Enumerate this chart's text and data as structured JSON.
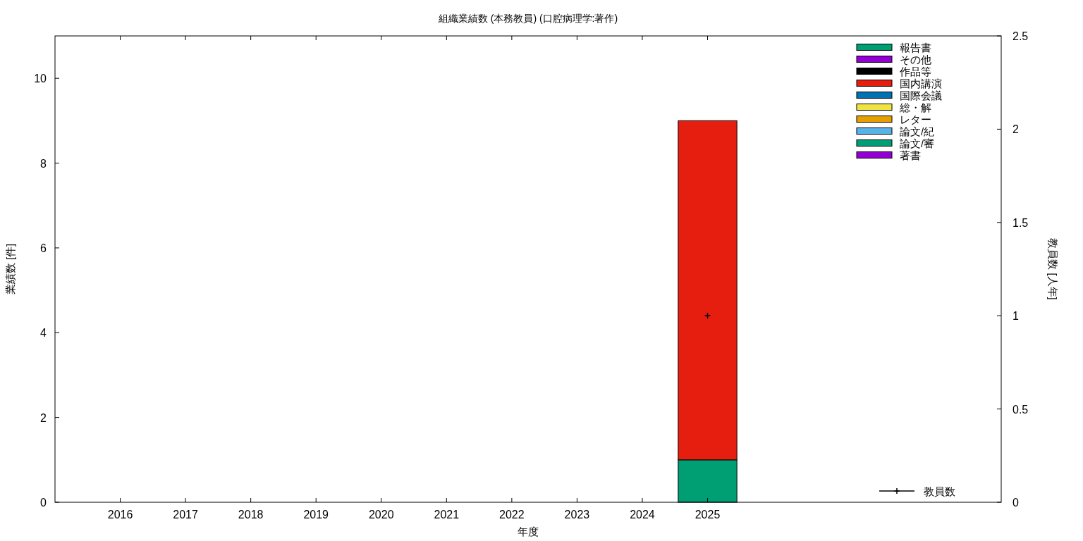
{
  "chart_data": {
    "type": "bar",
    "title": "組織業績数 (本務教員) (口腔病理学:著作)",
    "xlabel": "年度",
    "ylabel": "業績数 [件]",
    "y2label": "教員数 [人年]",
    "x": [
      2025
    ],
    "xlim": [
      2015,
      2029.5
    ],
    "xticks": [
      2016,
      2017,
      2018,
      2019,
      2020,
      2021,
      2022,
      2023,
      2024,
      2025
    ],
    "ylim": [
      0,
      11
    ],
    "yticks": [
      0,
      2,
      4,
      6,
      8,
      10
    ],
    "y2lim": [
      0,
      2.5
    ],
    "y2ticks": [
      0,
      0.5,
      1,
      1.5,
      2,
      2.5
    ],
    "stacked": true,
    "legend": "right",
    "grid": false,
    "series": [
      {
        "name": "著書",
        "color": "#9400d3",
        "values": [
          0
        ]
      },
      {
        "name": "論文/審",
        "color": "#009e73",
        "values": [
          1
        ]
      },
      {
        "name": "論文/紀",
        "color": "#56b4e9",
        "values": [
          0
        ]
      },
      {
        "name": "レター",
        "color": "#e69f00",
        "values": [
          0
        ]
      },
      {
        "name": "総・解",
        "color": "#f0e442",
        "values": [
          0
        ]
      },
      {
        "name": "国際会議",
        "color": "#0072b2",
        "values": [
          0
        ]
      },
      {
        "name": "国内講演",
        "color": "#e51e10",
        "values": [
          8
        ]
      },
      {
        "name": "作品等",
        "color": "#000000",
        "values": [
          0
        ]
      },
      {
        "name": "その他",
        "color": "#9400d3",
        "values": [
          0
        ]
      },
      {
        "name": "報告書",
        "color": "#009e73",
        "values": [
          0
        ]
      },
      {
        "name": "教員数",
        "type": "line",
        "axis": "y2",
        "marker": "cross",
        "color": "#000000",
        "values": [
          1
        ]
      }
    ]
  }
}
